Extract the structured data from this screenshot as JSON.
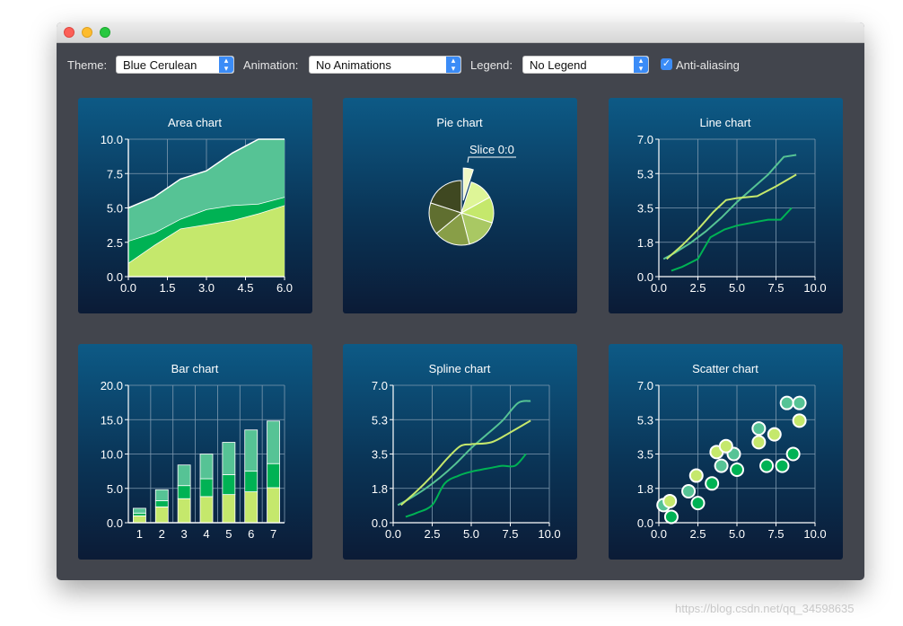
{
  "toolbar": {
    "theme_label": "Theme:",
    "theme_value": "Blue Cerulean",
    "animation_label": "Animation:",
    "animation_value": "No Animations",
    "legend_label": "Legend:",
    "legend_value": "No Legend",
    "antialias_label": "Anti-aliasing",
    "antialias_checked": true
  },
  "watermark": "https://blog.csdn.net/qq_34598635",
  "colors": {
    "window_bg": "#42454d",
    "series_dark_green": "#00b254",
    "series_teal": "#56c395",
    "series_lime": "#c5e86c",
    "accent_blue": "#3b8cf7"
  },
  "chart_data": [
    {
      "type": "area",
      "title": "Area chart",
      "x": [
        0,
        1,
        2,
        3,
        4,
        5,
        6
      ],
      "xlim": [
        0,
        6
      ],
      "ylim": [
        0,
        10
      ],
      "xticks": [
        "0.0",
        "1.5",
        "3.0",
        "4.5",
        "6.0"
      ],
      "yticks": [
        "0.0",
        "2.5",
        "5.0",
        "7.5",
        "10.0"
      ],
      "series": [
        {
          "values": [
            1.0,
            2.3,
            3.5,
            3.8,
            4.1,
            4.6,
            5.2
          ],
          "color": "#c5e86c"
        },
        {
          "values": [
            2.6,
            3.2,
            4.2,
            4.9,
            5.2,
            5.3,
            5.8
          ],
          "color": "#00b254"
        },
        {
          "values": [
            5.0,
            5.8,
            7.1,
            7.7,
            9.0,
            10.0,
            10.0
          ],
          "color": "#56c395"
        }
      ]
    },
    {
      "type": "pie",
      "title": "Pie chart",
      "slice_label": "Slice 0:0",
      "values": [
        0.05,
        0.12,
        0.13,
        0.16,
        0.18,
        0.16,
        0.2
      ],
      "colors": [
        "#f1f8c5",
        "#def597",
        "#c5e86c",
        "#a9c863",
        "#889e47",
        "#606f30",
        "#3f4821"
      ],
      "exploded": 0
    },
    {
      "type": "line",
      "title": "Line chart",
      "xlim": [
        0,
        10
      ],
      "ylim": [
        0,
        7
      ],
      "xticks": [
        "0.0",
        "2.5",
        "5.0",
        "7.5",
        "10.0"
      ],
      "yticks": [
        "0.0",
        "1.8",
        "3.5",
        "5.3",
        "7.0"
      ],
      "series": [
        {
          "color": "#56c395",
          "points": [
            [
              0.3,
              0.9
            ],
            [
              1,
              1.2
            ],
            [
              2,
              1.7
            ],
            [
              3,
              2.3
            ],
            [
              4,
              3.0
            ],
            [
              5,
              3.8
            ],
            [
              6,
              4.5
            ],
            [
              7,
              5.2
            ],
            [
              8,
              6.1
            ],
            [
              8.8,
              6.2
            ]
          ]
        },
        {
          "color": "#c5e86c",
          "points": [
            [
              0.5,
              0.9
            ],
            [
              1.5,
              1.6
            ],
            [
              2.5,
              2.4
            ],
            [
              3.5,
              3.3
            ],
            [
              4.3,
              3.9
            ],
            [
              5,
              4.0
            ],
            [
              6.3,
              4.1
            ],
            [
              7.5,
              4.6
            ],
            [
              8.8,
              5.2
            ]
          ]
        },
        {
          "color": "#00b254",
          "points": [
            [
              0.8,
              0.3
            ],
            [
              1.5,
              0.5
            ],
            [
              2.5,
              0.9
            ],
            [
              3.3,
              2.0
            ],
            [
              4.2,
              2.4
            ],
            [
              5,
              2.6
            ],
            [
              6.3,
              2.8
            ],
            [
              7,
              2.9
            ],
            [
              7.8,
              2.9
            ],
            [
              8.5,
              3.5
            ]
          ]
        }
      ]
    },
    {
      "type": "bar",
      "title": "Bar chart",
      "categories": [
        "1",
        "2",
        "3",
        "4",
        "5",
        "6",
        "7"
      ],
      "ylim": [
        0,
        20
      ],
      "yticks": [
        "0.0",
        "5.0",
        "10.0",
        "15.0",
        "20.0"
      ],
      "stacked": true,
      "series": [
        {
          "color": "#c5e86c",
          "values": [
            1.0,
            2.3,
            3.5,
            3.8,
            4.1,
            4.5,
            5.1
          ]
        },
        {
          "color": "#00b254",
          "values": [
            0.4,
            0.9,
            1.9,
            2.6,
            2.9,
            3.0,
            3.5
          ]
        },
        {
          "color": "#56c395",
          "values": [
            0.7,
            1.6,
            3.0,
            3.6,
            4.7,
            6.0,
            6.2
          ]
        }
      ]
    },
    {
      "type": "line",
      "title": "Spline chart",
      "smooth": true,
      "xlim": [
        0,
        10
      ],
      "ylim": [
        0,
        7
      ],
      "xticks": [
        "0.0",
        "2.5",
        "5.0",
        "7.5",
        "10.0"
      ],
      "yticks": [
        "0.0",
        "1.8",
        "3.5",
        "5.3",
        "7.0"
      ],
      "series": [
        {
          "color": "#56c395",
          "points": [
            [
              0.3,
              0.9
            ],
            [
              1,
              1.2
            ],
            [
              2,
              1.7
            ],
            [
              3,
              2.3
            ],
            [
              4,
              3.0
            ],
            [
              5,
              3.8
            ],
            [
              6,
              4.5
            ],
            [
              7,
              5.2
            ],
            [
              8,
              6.1
            ],
            [
              8.8,
              6.2
            ]
          ]
        },
        {
          "color": "#c5e86c",
          "points": [
            [
              0.5,
              0.9
            ],
            [
              1.5,
              1.6
            ],
            [
              2.5,
              2.4
            ],
            [
              3.5,
              3.3
            ],
            [
              4.3,
              3.9
            ],
            [
              5,
              4.0
            ],
            [
              6.3,
              4.1
            ],
            [
              7.5,
              4.6
            ],
            [
              8.8,
              5.2
            ]
          ]
        },
        {
          "color": "#00b254",
          "points": [
            [
              0.8,
              0.3
            ],
            [
              1.5,
              0.5
            ],
            [
              2.5,
              0.9
            ],
            [
              3.3,
              2.0
            ],
            [
              4.2,
              2.4
            ],
            [
              5,
              2.6
            ],
            [
              6.3,
              2.8
            ],
            [
              7,
              2.9
            ],
            [
              7.8,
              2.9
            ],
            [
              8.5,
              3.5
            ]
          ]
        }
      ]
    },
    {
      "type": "scatter",
      "title": "Scatter chart",
      "xlim": [
        0,
        10
      ],
      "ylim": [
        0,
        7
      ],
      "xticks": [
        "0.0",
        "2.5",
        "5.0",
        "7.5",
        "10.0"
      ],
      "yticks": [
        "0.0",
        "1.8",
        "3.5",
        "5.3",
        "7.0"
      ],
      "series": [
        {
          "color": "#56c395",
          "points": [
            [
              0.3,
              0.9
            ],
            [
              1.9,
              1.6
            ],
            [
              4,
              2.9
            ],
            [
              4.8,
              3.5
            ],
            [
              6.4,
              4.8
            ],
            [
              8.2,
              6.1
            ],
            [
              9,
              6.1
            ]
          ]
        },
        {
          "color": "#c5e86c",
          "points": [
            [
              0.7,
              1.1
            ],
            [
              2.4,
              2.4
            ],
            [
              3.7,
              3.6
            ],
            [
              4.3,
              3.9
            ],
            [
              6.4,
              4.1
            ],
            [
              7.4,
              4.5
            ],
            [
              9,
              5.2
            ]
          ]
        },
        {
          "color": "#00b254",
          "points": [
            [
              0.8,
              0.3
            ],
            [
              2.5,
              1.0
            ],
            [
              3.4,
              2.0
            ],
            [
              5.0,
              2.7
            ],
            [
              6.9,
              2.9
            ],
            [
              7.9,
              2.9
            ],
            [
              8.6,
              3.5
            ]
          ]
        }
      ]
    }
  ]
}
